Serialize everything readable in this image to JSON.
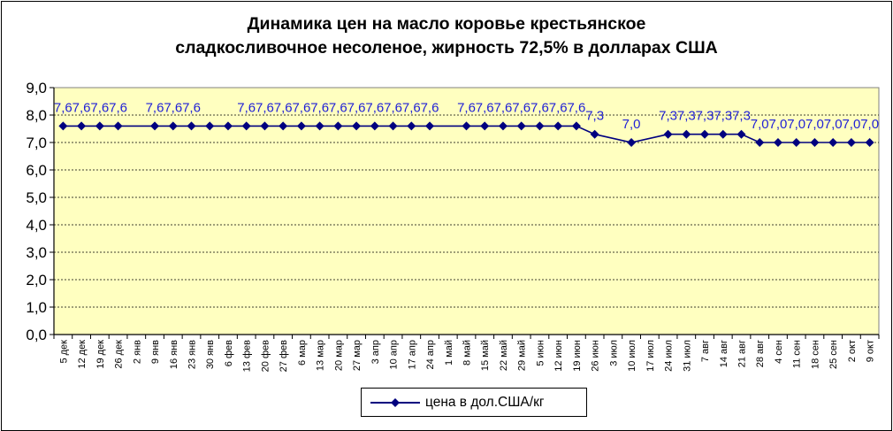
{
  "chart_data": {
    "type": "line",
    "title": "Динамика цен на масло коровье крестьянское\nсладкосливочное несоленое, жирность  72,5%  в долларах США",
    "xlabel": "",
    "ylabel": "",
    "ylim": [
      0,
      9
    ],
    "yticks": [
      "0,0",
      "1,0",
      "2,0",
      "3,0",
      "4,0",
      "5,0",
      "6,0",
      "7,0",
      "8,0",
      "9,0"
    ],
    "grid": true,
    "legend_position": "bottom",
    "plot_background": "#ffffc0",
    "series_color": "#00007f",
    "label_color": "#1f1fd6",
    "categories": [
      "5 дек",
      "12 дек",
      "19 дек",
      "26 дек",
      "2 янв",
      "9 янв",
      "16 янв",
      "23 янв",
      "30 янв",
      "6 фев",
      "13 фев",
      "20 фев",
      "27 фев",
      "6 мар",
      "13 мар",
      "20 мар",
      "27 мар",
      "3 апр",
      "10 апр",
      "17 апр",
      "24 апр",
      "1 май",
      "8 май",
      "15 май",
      "22 май",
      "29 май",
      "5 июн",
      "12 июн",
      "19 июн",
      "26 июн",
      "3 июл",
      "10 июл",
      "17 июл",
      "24 июл",
      "31 июл",
      "7 авг",
      "14 авг",
      "21 авг",
      "28 авг",
      "4 сен",
      "11 сен",
      "18 сен",
      "25 сен",
      "2 окт",
      "9 окт"
    ],
    "series": [
      {
        "name": "цена в дол.США/кг",
        "values": [
          7.6,
          7.6,
          7.6,
          7.6,
          null,
          7.6,
          7.6,
          7.6,
          7.6,
          7.6,
          7.6,
          7.6,
          7.6,
          7.6,
          7.6,
          7.6,
          7.6,
          7.6,
          7.6,
          7.6,
          7.6,
          null,
          7.6,
          7.6,
          7.6,
          7.6,
          7.6,
          7.6,
          7.6,
          7.3,
          null,
          7.0,
          null,
          7.3,
          7.3,
          7.3,
          7.3,
          7.3,
          7.0,
          7.0,
          7.0,
          7.0,
          7.0,
          7.0,
          7.0
        ],
        "labels": [
          "7,6",
          "7,6",
          "7,6",
          "7,6",
          null,
          "7,6",
          "7,6",
          "7,6",
          null,
          null,
          "7,6",
          "7,6",
          "7,6",
          "7,6",
          "7,6",
          "7,6",
          "7,6",
          "7,6",
          "7,6",
          "7,6",
          "7,6",
          null,
          "7,6",
          "7,6",
          "7,6",
          "7,6",
          "7,6",
          "7,6",
          "7,6",
          "7,3",
          null,
          "7,0",
          null,
          "7,3",
          "7,3",
          "7,3",
          "7,3",
          "7,3",
          "7,0",
          "7,0",
          "7,0",
          "7,0",
          "7,0",
          "7,0",
          "7,0"
        ]
      }
    ]
  }
}
